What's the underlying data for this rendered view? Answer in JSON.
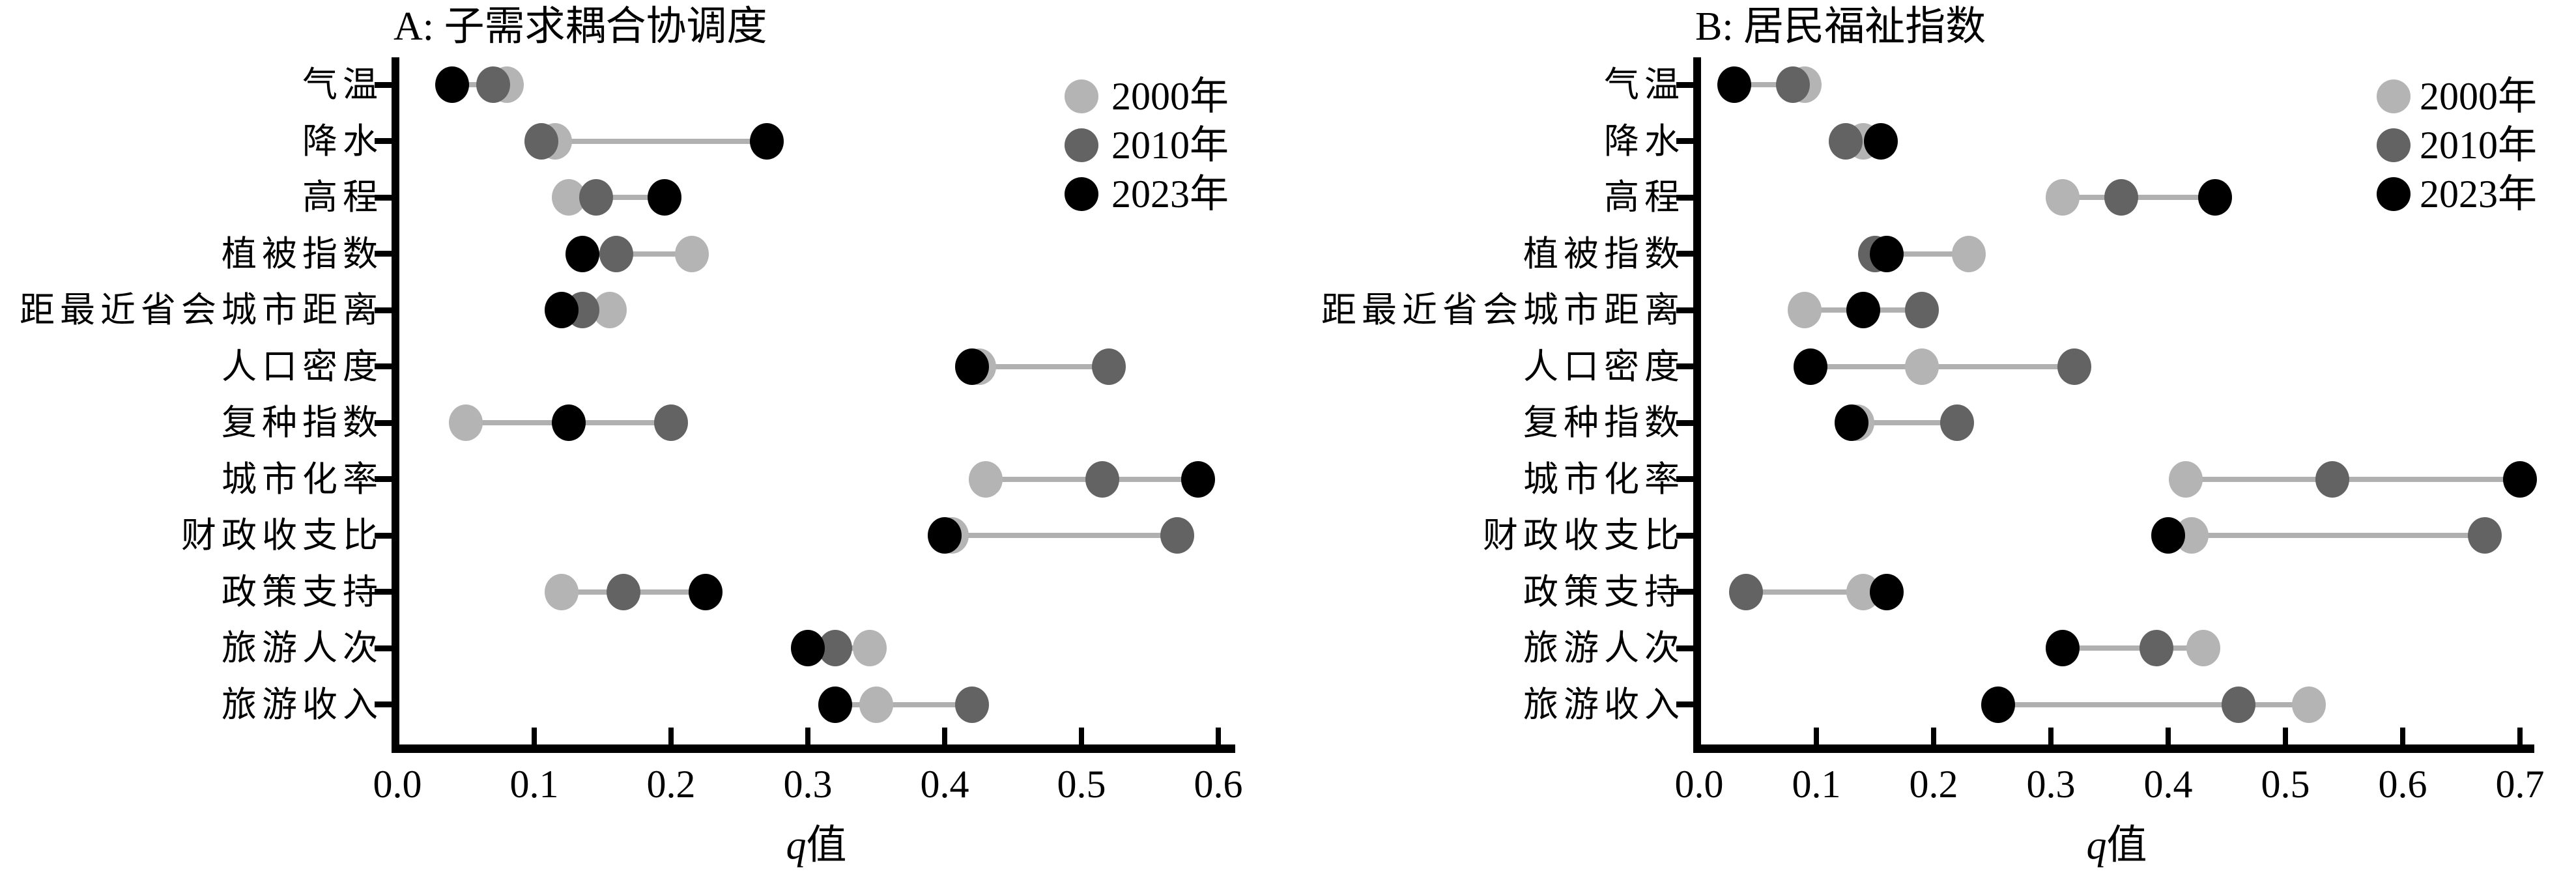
{
  "figure": {
    "background": "#ffffff"
  },
  "colors": {
    "year2000": "#b4b4b4",
    "year2010": "#636363",
    "year2023": "#000000",
    "connector_line": "#b0b0b0",
    "axis": "#000000"
  },
  "legend": {
    "position": "upper-right",
    "items": [
      {
        "label": "2000年",
        "color": "#b4b4b4"
      },
      {
        "label": "2010年",
        "color": "#636363"
      },
      {
        "label": "2023年",
        "color": "#000000"
      }
    ]
  },
  "chart_data": [
    {
      "type": "scatter",
      "variant": "dumbbell-dot-plot",
      "panel": "A",
      "title": "A: 子需求耦合协调度",
      "xlabel": "q值",
      "xlim": [
        0,
        0.61
      ],
      "xticks": [
        0.0,
        0.1,
        0.2,
        0.3,
        0.4,
        0.5,
        0.6
      ],
      "grid": false,
      "legend_position": "upper right",
      "categories": [
        "气温",
        "降水",
        "高程",
        "植被指数",
        "距最近省会城市距离",
        "人口密度",
        "复种指数",
        "城市化率",
        "财政收支比",
        "政策支持",
        "旅游人次",
        "旅游收入"
      ],
      "series": [
        {
          "name": "2000年",
          "color": "#b4b4b4",
          "values": [
            0.08,
            0.115,
            0.125,
            0.215,
            0.155,
            0.425,
            0.05,
            0.43,
            0.405,
            0.12,
            0.345,
            0.35
          ]
        },
        {
          "name": "2010年",
          "color": "#636363",
          "values": [
            0.07,
            0.105,
            0.145,
            0.16,
            0.135,
            0.52,
            0.2,
            0.515,
            0.57,
            0.165,
            0.32,
            0.42
          ]
        },
        {
          "name": "2023年",
          "color": "#000000",
          "values": [
            0.04,
            0.27,
            0.195,
            0.135,
            0.12,
            0.42,
            0.125,
            0.585,
            0.4,
            0.225,
            0.3,
            0.32
          ]
        }
      ]
    },
    {
      "type": "scatter",
      "variant": "dumbbell-dot-plot",
      "panel": "B",
      "title": "B: 居民福祉指数",
      "xlabel": "q值",
      "xlim": [
        0,
        0.72
      ],
      "xticks": [
        0.0,
        0.1,
        0.2,
        0.3,
        0.4,
        0.5,
        0.6,
        0.7
      ],
      "grid": false,
      "legend_position": "upper right",
      "categories": [
        "气温",
        "降水",
        "高程",
        "植被指数",
        "距最近省会城市距离",
        "人口密度",
        "复种指数",
        "城市化率",
        "财政收支比",
        "政策支持",
        "旅游人次",
        "旅游收入"
      ],
      "series": [
        {
          "name": "2000年",
          "color": "#b4b4b4",
          "values": [
            0.09,
            0.14,
            0.31,
            0.23,
            0.09,
            0.19,
            0.135,
            0.415,
            0.42,
            0.14,
            0.43,
            0.52
          ]
        },
        {
          "name": "2010年",
          "color": "#636363",
          "values": [
            0.08,
            0.125,
            0.36,
            0.15,
            0.19,
            0.32,
            0.22,
            0.54,
            0.67,
            0.04,
            0.39,
            0.46
          ]
        },
        {
          "name": "2023年",
          "color": "#000000",
          "values": [
            0.03,
            0.155,
            0.44,
            0.16,
            0.14,
            0.095,
            0.13,
            0.7,
            0.4,
            0.16,
            0.31,
            0.255
          ]
        }
      ]
    }
  ]
}
